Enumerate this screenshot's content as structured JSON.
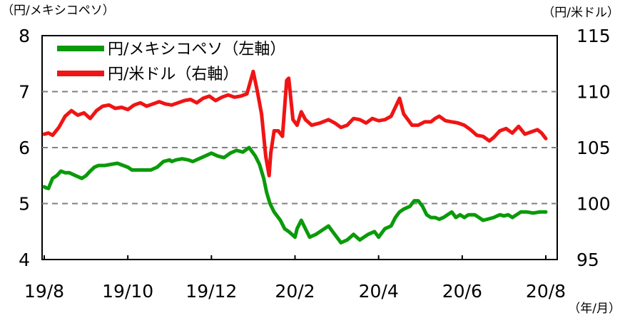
{
  "chart_data": {
    "type": "line",
    "left_axis_label": "（円/メキシコペソ）",
    "right_axis_label": "（円/米ドル）",
    "x_unit_label": "（年/月）",
    "x_ticks": [
      "19/8",
      "19/10",
      "19/12",
      "20/2",
      "20/4",
      "20/6",
      "20/8"
    ],
    "y_left": {
      "ticks": [
        "4",
        "5",
        "6",
        "7",
        "8"
      ],
      "range": [
        4,
        8
      ]
    },
    "y_right": {
      "ticks": [
        "95",
        "100",
        "105",
        "110",
        "115"
      ],
      "range": [
        95,
        115
      ]
    },
    "gridlines_left": [
      5,
      6,
      7
    ],
    "series": [
      {
        "name": "円/メキシコペソ（左軸）",
        "axis": "left",
        "color": "#0a9a0a",
        "x": [
          0.0,
          0.05,
          0.1,
          0.2,
          0.3,
          0.4,
          0.5,
          0.6,
          0.75,
          0.9,
          1.0,
          1.1,
          1.2,
          1.3,
          1.45,
          1.6,
          1.75,
          2.0,
          2.1,
          2.25,
          2.4,
          2.55,
          2.7,
          2.85,
          3.0,
          3.05,
          3.15,
          3.3,
          3.45,
          3.55,
          3.7,
          3.85,
          4.0,
          4.15,
          4.3,
          4.45,
          4.6,
          4.75,
          4.9,
          5.0,
          5.05,
          5.15,
          5.25,
          5.32,
          5.4,
          5.5,
          5.65,
          5.75,
          5.85,
          6.0,
          6.05,
          6.15,
          6.25,
          6.35,
          6.5,
          6.6,
          6.8,
          6.9,
          7.0,
          7.1,
          7.25,
          7.4,
          7.55,
          7.75,
          7.9,
          8.0,
          8.15,
          8.3,
          8.4,
          8.5,
          8.6,
          8.75,
          8.85,
          8.95,
          9.05,
          9.15,
          9.25,
          9.35,
          9.45,
          9.55,
          9.65,
          9.75,
          9.85,
          9.95,
          10.05,
          10.15,
          10.3,
          10.4,
          10.5,
          10.6,
          10.75,
          10.9,
          11.0,
          11.1,
          11.2,
          11.3,
          11.4,
          11.55,
          11.7,
          11.85,
          12.0
        ],
        "y": [
          5.3,
          5.28,
          5.27,
          5.45,
          5.5,
          5.58,
          5.55,
          5.55,
          5.5,
          5.45,
          5.5,
          5.58,
          5.65,
          5.68,
          5.68,
          5.7,
          5.72,
          5.65,
          5.6,
          5.6,
          5.6,
          5.6,
          5.65,
          5.75,
          5.78,
          5.75,
          5.78,
          5.8,
          5.78,
          5.75,
          5.8,
          5.85,
          5.9,
          5.85,
          5.82,
          5.9,
          5.95,
          5.92,
          6.0,
          5.9,
          5.85,
          5.7,
          5.45,
          5.2,
          5.0,
          4.85,
          4.7,
          4.55,
          4.5,
          4.4,
          4.55,
          4.7,
          4.55,
          4.4,
          4.45,
          4.5,
          4.6,
          4.5,
          4.4,
          4.3,
          4.35,
          4.45,
          4.35,
          4.45,
          4.5,
          4.4,
          4.55,
          4.6,
          4.75,
          4.85,
          4.9,
          4.95,
          5.05,
          5.05,
          4.95,
          4.8,
          4.75,
          4.75,
          4.72,
          4.75,
          4.8,
          4.85,
          4.75,
          4.8,
          4.75,
          4.8,
          4.8,
          4.75,
          4.7,
          4.72,
          4.75,
          4.8,
          4.78,
          4.8,
          4.75,
          4.8,
          4.85,
          4.85,
          4.83,
          4.85,
          4.85
        ]
      },
      {
        "name": "円/米ドル（右軸）",
        "axis": "right",
        "color": "#f01414",
        "x": [
          0.0,
          0.1,
          0.2,
          0.35,
          0.5,
          0.65,
          0.8,
          0.95,
          1.1,
          1.25,
          1.4,
          1.55,
          1.7,
          1.85,
          2.0,
          2.15,
          2.3,
          2.45,
          2.6,
          2.75,
          2.9,
          3.05,
          3.2,
          3.35,
          3.5,
          3.65,
          3.8,
          3.95,
          4.1,
          4.25,
          4.4,
          4.55,
          4.7,
          4.85,
          5.0,
          5.1,
          5.2,
          5.3,
          5.38,
          5.42,
          5.5,
          5.6,
          5.7,
          5.8,
          5.85,
          5.95,
          6.05,
          6.15,
          6.25,
          6.4,
          6.6,
          6.8,
          6.95,
          7.1,
          7.25,
          7.4,
          7.55,
          7.7,
          7.85,
          8.0,
          8.15,
          8.3,
          8.5,
          8.6,
          8.7,
          8.8,
          8.95,
          9.1,
          9.25,
          9.35,
          9.45,
          9.6,
          9.75,
          9.9,
          10.05,
          10.2,
          10.35,
          10.5,
          10.65,
          10.75,
          10.9,
          11.05,
          11.2,
          11.35,
          11.5,
          11.65,
          11.8,
          11.9,
          12.0
        ],
        "y": [
          106.2,
          106.3,
          106.1,
          106.8,
          107.8,
          108.3,
          107.9,
          108.1,
          107.6,
          108.3,
          108.7,
          108.8,
          108.5,
          108.6,
          108.4,
          108.8,
          109.0,
          108.7,
          108.9,
          109.1,
          108.9,
          108.8,
          109.0,
          109.2,
          109.3,
          109.0,
          109.4,
          109.6,
          109.2,
          109.5,
          109.7,
          109.5,
          109.6,
          109.8,
          111.8,
          110.0,
          108.0,
          104.2,
          102.5,
          104.5,
          106.5,
          106.5,
          106.0,
          111.0,
          111.2,
          107.5,
          107.0,
          108.2,
          107.5,
          107.0,
          107.2,
          107.5,
          107.2,
          106.8,
          107.0,
          107.6,
          107.5,
          107.2,
          107.6,
          107.4,
          107.5,
          107.8,
          109.4,
          108.0,
          107.5,
          107.0,
          107.0,
          107.3,
          107.3,
          107.6,
          107.8,
          107.4,
          107.3,
          107.2,
          107.0,
          106.6,
          106.1,
          106.0,
          105.6,
          105.9,
          106.5,
          106.7,
          106.3,
          106.9,
          106.2,
          106.4,
          106.6,
          106.3,
          105.8
        ]
      }
    ]
  }
}
